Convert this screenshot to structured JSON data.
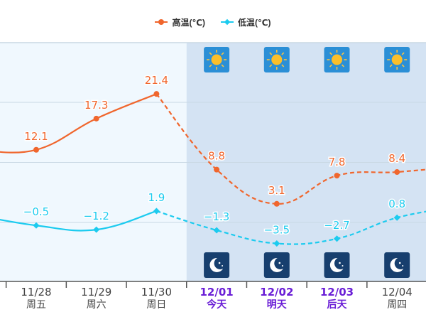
{
  "legend": {
    "high_label": "高温(℃)",
    "low_label": "低温(℃)"
  },
  "colors": {
    "high": "#f0662d",
    "low": "#1ccbef",
    "past_bg": "#f0f8fe",
    "future_bg": "#d4e3f3",
    "grid": "#c9d8e4",
    "future_label": "#6a1ed6",
    "past_label": "#444444"
  },
  "days": [
    {
      "date": "11/28",
      "weekday": "周五",
      "future": false
    },
    {
      "date": "11/29",
      "weekday": "周六",
      "future": false
    },
    {
      "date": "11/30",
      "weekday": "周日",
      "future": false
    },
    {
      "date": "12/01",
      "weekday": "今天",
      "future": true,
      "highlight": true
    },
    {
      "date": "12/02",
      "weekday": "明天",
      "future": true,
      "highlight": true
    },
    {
      "date": "12/03",
      "weekday": "后天",
      "future": true,
      "highlight": true
    },
    {
      "date": "12/04",
      "weekday": "周四",
      "future": true,
      "highlight": false
    }
  ],
  "day_icons": [
    "sun-icon",
    "sun-icon",
    "sun-icon",
    "sun-icon"
  ],
  "night_icons": [
    "moon-icon",
    "moon-icon",
    "moon-icon",
    "moon-icon"
  ],
  "chart_data": {
    "type": "line",
    "title": "",
    "categories": [
      "11/28",
      "11/29",
      "11/30",
      "12/01",
      "12/02",
      "12/03",
      "12/04"
    ],
    "category_sublabels": [
      "周五",
      "周六",
      "周日",
      "今天",
      "明天",
      "后天",
      "周四"
    ],
    "series": [
      {
        "name": "高温(℃)",
        "values": [
          12.1,
          17.3,
          21.4,
          8.8,
          3.1,
          7.8,
          8.4
        ],
        "color": "#f0662d",
        "marker": "circle",
        "dashed_from_index": 2
      },
      {
        "name": "低温(℃)",
        "values": [
          -0.5,
          -1.2,
          1.9,
          -1.3,
          -3.5,
          -2.7,
          0.8
        ],
        "color": "#1ccbef",
        "marker": "diamond",
        "dashed_from_index": 2
      }
    ],
    "xlabel": "",
    "ylabel": "",
    "grid": true,
    "gridlines_y": [
      20,
      10,
      0
    ],
    "legend_position": "top"
  }
}
